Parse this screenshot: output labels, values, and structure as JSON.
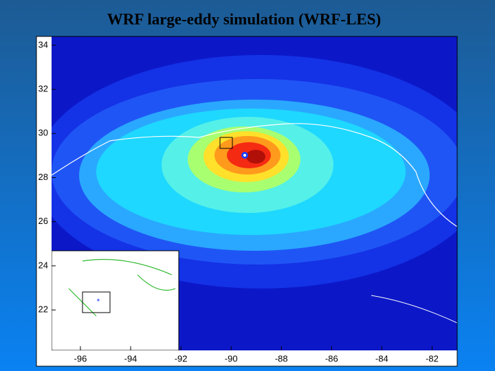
{
  "chart_data": {
    "type": "map",
    "title": "WRF large-eddy simulation (WRF-LES)",
    "xlim": [
      -97.75,
      -81
    ],
    "ylim": [
      19.45,
      34.4
    ],
    "xticks": [
      -96,
      -94,
      -92,
      -90,
      -88,
      -86,
      -84,
      -82
    ],
    "yticks": [
      22,
      24,
      26,
      28,
      30,
      32,
      34
    ]
  }
}
